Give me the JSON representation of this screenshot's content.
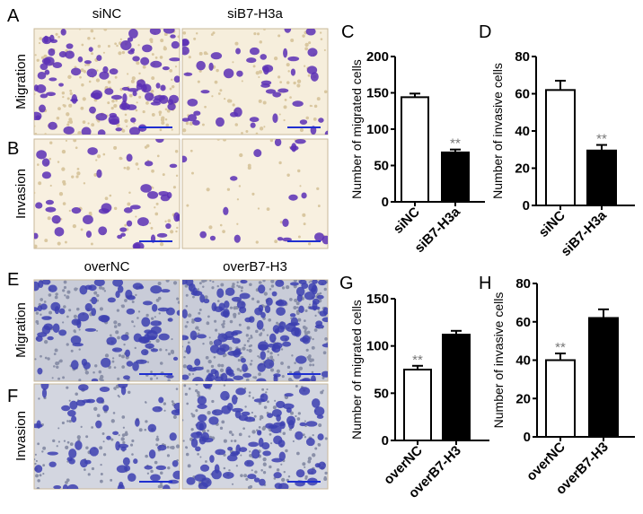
{
  "panels": {
    "A": "A",
    "B": "B",
    "C": "C",
    "D": "D",
    "E": "E",
    "F": "F",
    "G": "G",
    "H": "H"
  },
  "micrographs": {
    "top_columns": [
      "siNC",
      "siB7-H3a"
    ],
    "bottom_columns": [
      "overNC",
      "overB7-H3"
    ],
    "rows": [
      "Migration",
      "Invasion"
    ],
    "stain_color": "#5a2fb5",
    "stain_color_bottom": "#3c3fb0"
  },
  "chart_data": [
    {
      "panel": "C",
      "type": "bar",
      "categories": [
        "siNC",
        "siB7-H3a"
      ],
      "values": [
        144,
        68
      ],
      "errors": [
        5,
        4
      ],
      "fills": [
        "#ffffff",
        "#000000"
      ],
      "significance": [
        "",
        "**"
      ],
      "ylabel": "Number of migrated cells",
      "ylim": [
        0,
        200
      ],
      "yticks": [
        0,
        50,
        100,
        150,
        200
      ]
    },
    {
      "panel": "D",
      "type": "bar",
      "categories": [
        "siNC",
        "siB7-H3a"
      ],
      "values": [
        62,
        29.5
      ],
      "errors": [
        5,
        3
      ],
      "fills": [
        "#ffffff",
        "#000000"
      ],
      "significance": [
        "",
        "**"
      ],
      "ylabel": "Number of invasive cells",
      "ylim": [
        0,
        80
      ],
      "yticks": [
        0,
        20,
        40,
        60,
        80
      ]
    },
    {
      "panel": "G",
      "type": "bar",
      "categories": [
        "overNC",
        "overB7-H3"
      ],
      "values": [
        75,
        112
      ],
      "errors": [
        4,
        4
      ],
      "fills": [
        "#ffffff",
        "#000000"
      ],
      "significance": [
        "**",
        ""
      ],
      "ylabel": "Number of migrated cells",
      "ylim": [
        0,
        150
      ],
      "yticks": [
        0,
        50,
        100,
        150
      ]
    },
    {
      "panel": "H",
      "type": "bar",
      "categories": [
        "overNC",
        "overB7-H3"
      ],
      "values": [
        40,
        62
      ],
      "errors": [
        3.5,
        4.5
      ],
      "fills": [
        "#ffffff",
        "#000000"
      ],
      "significance": [
        "**",
        ""
      ],
      "ylabel": "Number of invasive cells",
      "ylim": [
        0,
        80
      ],
      "yticks": [
        0,
        20,
        40,
        60,
        80
      ]
    }
  ]
}
